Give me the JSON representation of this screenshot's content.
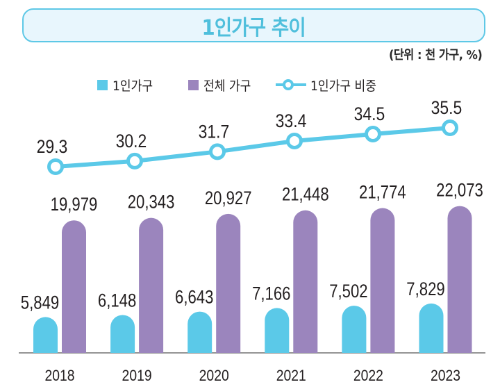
{
  "title": "1인가구 추이",
  "unit_note": "(단위 : 천 가구, %)",
  "legend": [
    {
      "label": "1인가구",
      "kind": "bar",
      "color": "#5bc9e8"
    },
    {
      "label": "전체 가구",
      "kind": "bar",
      "color": "#9b85bd"
    },
    {
      "label": "1인가구 비중",
      "kind": "line-marker",
      "color": "#5bc9e8"
    }
  ],
  "chart_data": {
    "type": "bar",
    "title": "1인가구 추이",
    "subtitle": "(단위 : 천 가구, %)",
    "xlabel": "",
    "ylabel": "",
    "categories": [
      "2018",
      "2019",
      "2020",
      "2021",
      "2022",
      "2023"
    ],
    "series": [
      {
        "name": "1인가구",
        "type": "bar",
        "color": "#5bc9e8",
        "unit": "천 가구",
        "values": [
          5849,
          6148,
          6643,
          7166,
          7502,
          7829
        ],
        "labels": [
          "5,849",
          "6,148",
          "6,643",
          "7,166",
          "7,502",
          "7,829"
        ]
      },
      {
        "name": "전체 가구",
        "type": "bar",
        "color": "#9b85bd",
        "unit": "천 가구",
        "values": [
          19979,
          20343,
          20927,
          21448,
          21774,
          22073
        ],
        "labels": [
          "19,979",
          "20,343",
          "20,927",
          "21,448",
          "21,774",
          "22,073"
        ]
      },
      {
        "name": "1인가구 비중",
        "type": "line",
        "color": "#5bc9e8",
        "unit": "%",
        "values": [
          29.3,
          30.2,
          31.7,
          33.4,
          34.5,
          35.5
        ],
        "labels": [
          "29.3",
          "30.2",
          "31.7",
          "33.4",
          "34.5",
          "35.5"
        ]
      }
    ],
    "grid": false,
    "legend_position": "top-center",
    "data_labels": true
  }
}
